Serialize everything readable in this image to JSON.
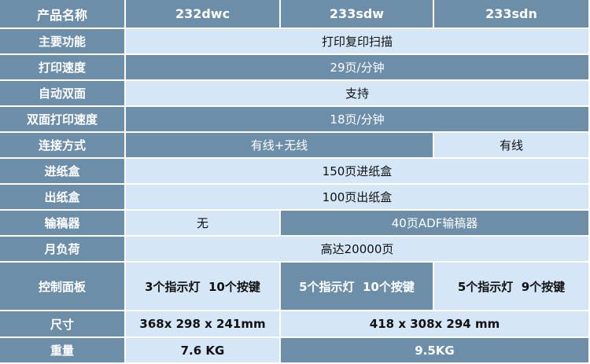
{
  "header": {
    "label": "产品名称",
    "models": [
      "232dwc",
      "233sdw",
      "233sdn"
    ]
  },
  "rows": {
    "function": {
      "label": "主要功能",
      "value": "打印复印扫描"
    },
    "speed": {
      "label": "打印速度",
      "value": "29页/分钟"
    },
    "duplex": {
      "label": "自动双面",
      "value": "支持"
    },
    "duplex_speed": {
      "label": "双面打印速度",
      "value": "18页/分钟"
    },
    "connection": {
      "label": "连接方式",
      "value_232_233sdw": "有线+无线",
      "value_233sdn": "有线"
    },
    "input_tray": {
      "label": "进纸盒",
      "value": "150页进纸盒"
    },
    "output_tray": {
      "label": "出纸盒",
      "value": "100页出纸盒"
    },
    "adf": {
      "label": "输稿器",
      "value_232dwc": "无",
      "value_233": "40页ADF输稿器"
    },
    "duty": {
      "label": "月负荷",
      "value": "高达20000页"
    },
    "panel": {
      "label": "控制面板",
      "values": [
        "3个指示灯  10个按键",
        "5个指示灯  10个按键",
        "5个指示灯  9个按键"
      ]
    },
    "size": {
      "label": "尺寸",
      "value_232dwc": "368x 298 x 241mm",
      "value_233": "418 x 308x 294 mm"
    },
    "weight": {
      "label": "重量",
      "value_232dwc": "7.6 KG",
      "value_233": "9.5KG"
    }
  },
  "colors": {
    "dark": "#6c8ea9",
    "light": "#d5e6f6"
  }
}
